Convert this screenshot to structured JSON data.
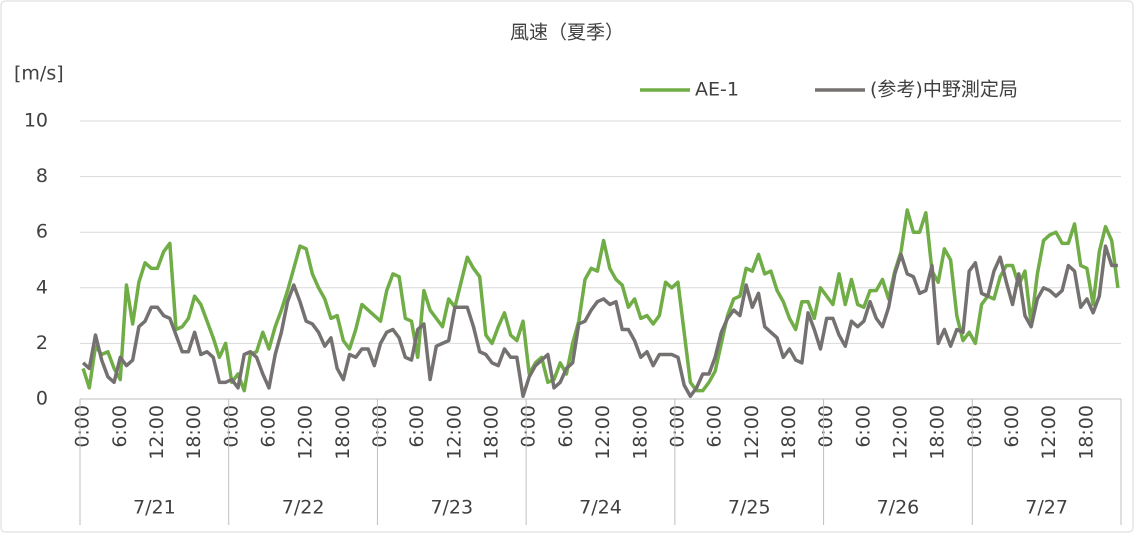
{
  "chart_data": {
    "type": "line",
    "title": "風速（夏季）",
    "ylabel": "[m/s]",
    "ylim": [
      0,
      10
    ],
    "yticks": [
      0,
      2,
      4,
      6,
      8,
      10
    ],
    "grid": true,
    "legend": "top-right",
    "categories": [
      "0:00",
      null,
      null,
      null,
      null,
      null,
      "6:00",
      null,
      null,
      null,
      null,
      null,
      "12:00",
      null,
      null,
      null,
      null,
      null,
      "18:00",
      null,
      null,
      null,
      null,
      null,
      "0:00",
      null,
      null,
      null,
      null,
      null,
      "6:00",
      null,
      null,
      null,
      null,
      null,
      "12:00",
      null,
      null,
      null,
      null,
      null,
      "18:00",
      null,
      null,
      null,
      null,
      null,
      "0:00",
      null,
      null,
      null,
      null,
      null,
      "6:00",
      null,
      null,
      null,
      null,
      null,
      "12:00",
      null,
      null,
      null,
      null,
      null,
      "18:00",
      null,
      null,
      null,
      null,
      null,
      "0:00",
      null,
      null,
      null,
      null,
      null,
      "6:00",
      null,
      null,
      null,
      null,
      null,
      "12:00",
      null,
      null,
      null,
      null,
      null,
      "18:00",
      null,
      null,
      null,
      null,
      null,
      "0:00",
      null,
      null,
      null,
      null,
      null,
      "6:00",
      null,
      null,
      null,
      null,
      null,
      "12:00",
      null,
      null,
      null,
      null,
      null,
      "18:00",
      null,
      null,
      null,
      null,
      null,
      "0:00",
      null,
      null,
      null,
      null,
      null,
      "6:00",
      null,
      null,
      null,
      null,
      null,
      "12:00",
      null,
      null,
      null,
      null,
      null,
      "18:00",
      null,
      null,
      null,
      null,
      null,
      "0:00",
      null,
      null,
      null,
      null,
      null,
      "6:00",
      null,
      null,
      null,
      null,
      null,
      "12:00",
      null,
      null,
      null,
      null,
      null,
      "18:00",
      null,
      null,
      null,
      null,
      null
    ],
    "groups": [
      "7/21",
      "7/22",
      "7/23",
      "7/24",
      "7/25",
      "7/26",
      "7/27"
    ],
    "series": [
      {
        "name": "AE-1",
        "color": "#70ad47",
        "values": [
          1.1,
          0.4,
          1.9,
          1.6,
          1.7,
          1.1,
          0.7,
          4.1,
          2.7,
          4.2,
          4.9,
          4.7,
          4.7,
          5.3,
          5.6,
          2.5,
          2.6,
          2.9,
          3.7,
          3.4,
          2.8,
          2.2,
          1.5,
          2.0,
          0.6,
          0.9,
          0.3,
          1.6,
          1.7,
          2.4,
          1.8,
          2.6,
          3.2,
          3.9,
          4.7,
          5.5,
          5.4,
          4.5,
          4.0,
          3.6,
          2.9,
          3.0,
          2.1,
          1.8,
          2.5,
          3.4,
          3.2,
          3.0,
          2.8,
          3.9,
          4.5,
          4.4,
          2.9,
          2.8,
          1.5,
          3.9,
          3.2,
          2.9,
          2.6,
          3.6,
          3.3,
          4.2,
          5.1,
          4.7,
          4.4,
          2.3,
          2.0,
          2.6,
          3.1,
          2.3,
          2.1,
          2.8,
          0.9,
          1.3,
          1.5,
          0.6,
          0.7,
          1.3,
          0.9,
          2.0,
          2.8,
          4.3,
          4.7,
          4.6,
          5.7,
          4.7,
          4.3,
          4.1,
          3.3,
          3.6,
          2.9,
          3.0,
          2.7,
          3.0,
          4.2,
          4.0,
          4.2,
          2.4,
          0.6,
          0.3,
          0.3,
          0.6,
          1.0,
          2.0,
          3.0,
          3.6,
          3.7,
          4.7,
          4.6,
          5.2,
          4.5,
          4.6,
          3.9,
          3.5,
          2.9,
          2.5,
          3.5,
          3.5,
          2.9,
          4.0,
          3.7,
          3.4,
          4.5,
          3.4,
          4.3,
          3.4,
          3.3,
          3.9,
          3.9,
          4.3,
          3.6,
          4.6,
          5.3,
          6.8,
          6.0,
          6.0,
          6.7,
          4.6,
          4.2,
          5.4,
          5.0,
          3.0,
          2.1,
          2.4,
          2.0,
          3.4,
          3.7,
          3.6,
          4.4,
          4.8,
          4.8,
          4.1,
          4.6,
          2.7,
          4.5,
          5.7,
          5.9,
          6.0,
          5.6,
          5.6,
          6.3,
          4.8,
          4.7,
          3.4,
          5.3,
          6.2,
          5.7,
          4.0
        ]
      },
      {
        "name": "(参考)中野測定局",
        "color": "#767171",
        "values": [
          1.3,
          1.1,
          2.3,
          1.4,
          0.8,
          0.6,
          1.5,
          1.2,
          1.4,
          2.6,
          2.8,
          3.3,
          3.3,
          3.0,
          2.9,
          2.3,
          1.7,
          1.7,
          2.4,
          1.6,
          1.7,
          1.5,
          0.6,
          0.6,
          0.7,
          0.4,
          1.6,
          1.7,
          1.5,
          0.9,
          0.4,
          1.6,
          2.4,
          3.5,
          4.1,
          3.5,
          2.8,
          2.7,
          2.4,
          1.9,
          2.2,
          1.1,
          0.7,
          1.6,
          1.5,
          1.8,
          1.8,
          1.2,
          2.0,
          2.4,
          2.5,
          2.2,
          1.5,
          1.4,
          2.5,
          2.7,
          0.7,
          1.9,
          2.0,
          2.1,
          3.3,
          3.3,
          3.3,
          2.6,
          1.7,
          1.6,
          1.3,
          1.2,
          1.8,
          1.5,
          1.5,
          0.1,
          0.8,
          1.2,
          1.4,
          1.6,
          0.4,
          0.6,
          1.1,
          1.3,
          2.7,
          2.8,
          3.2,
          3.5,
          3.6,
          3.4,
          3.5,
          2.5,
          2.5,
          2.1,
          1.5,
          1.7,
          1.2,
          1.6,
          1.6,
          1.6,
          1.5,
          0.5,
          0.1,
          0.4,
          0.9,
          0.9,
          1.5,
          2.4,
          2.9,
          3.2,
          3.0,
          4.1,
          3.3,
          3.8,
          2.6,
          2.4,
          2.2,
          1.5,
          1.8,
          1.4,
          1.3,
          3.1,
          2.5,
          1.8,
          2.9,
          2.9,
          2.3,
          1.9,
          2.8,
          2.6,
          2.8,
          3.5,
          2.9,
          2.6,
          3.3,
          4.5,
          5.2,
          4.5,
          4.4,
          3.8,
          3.9,
          4.8,
          2.0,
          2.5,
          1.9,
          2.5,
          2.4,
          4.6,
          4.9,
          3.8,
          3.7,
          4.6,
          5.1,
          4.2,
          3.4,
          4.5,
          3.0,
          2.6,
          3.6,
          4.0,
          3.9,
          3.7,
          3.9,
          4.8,
          4.6,
          3.3,
          3.6,
          3.1,
          3.7,
          5.5,
          4.8,
          4.8
        ]
      }
    ]
  }
}
